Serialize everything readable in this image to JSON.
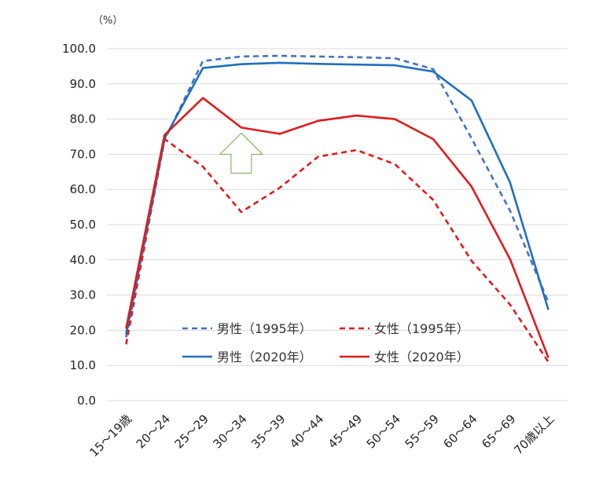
{
  "chart_data": {
    "type": "line",
    "unit_label": "（%）",
    "categories": [
      "15～19歳",
      "20～24",
      "25～29",
      "30～34",
      "35～39",
      "40～44",
      "45～49",
      "50～54",
      "55～59",
      "60～64",
      "65～69",
      "70歳以上"
    ],
    "y_ticks": [
      "100.0",
      "90.0",
      "80.0",
      "70.0",
      "60.0",
      "50.0",
      "40.0",
      "30.0",
      "20.0",
      "10.0",
      "0.0"
    ],
    "ylim": [
      0,
      100
    ],
    "grid": true,
    "legend_position": "center-bottom",
    "series": [
      {
        "name": "男性（1995年）",
        "color": "#4472C4",
        "dash": true,
        "values": [
          18.0,
          74.0,
          96.5,
          97.8,
          98.0,
          97.8,
          97.6,
          97.3,
          94.2,
          74.5,
          54.0,
          28.0
        ]
      },
      {
        "name": "女性（1995年）",
        "color": "#E31A1C",
        "dash": true,
        "values": [
          16.0,
          74.3,
          66.5,
          53.6,
          60.5,
          69.3,
          71.2,
          67.2,
          57.0,
          39.7,
          27.3,
          11.0
        ]
      },
      {
        "name": "男性（2020年）",
        "color": "#1F6FBF",
        "dash": false,
        "values": [
          19.0,
          74.5,
          94.5,
          95.6,
          96.0,
          95.7,
          95.5,
          95.3,
          93.5,
          85.3,
          62.0,
          25.8
        ]
      },
      {
        "name": "女性（2020年）",
        "color": "#E31A1C",
        "dash": false,
        "values": [
          20.5,
          75.5,
          86.0,
          77.6,
          75.8,
          79.5,
          81.0,
          80.0,
          74.3,
          60.8,
          40.2,
          12.2
        ]
      }
    ],
    "annotation": {
      "type": "up-arrow",
      "color": "#70AD47",
      "category_index": 3,
      "value": 70
    }
  }
}
